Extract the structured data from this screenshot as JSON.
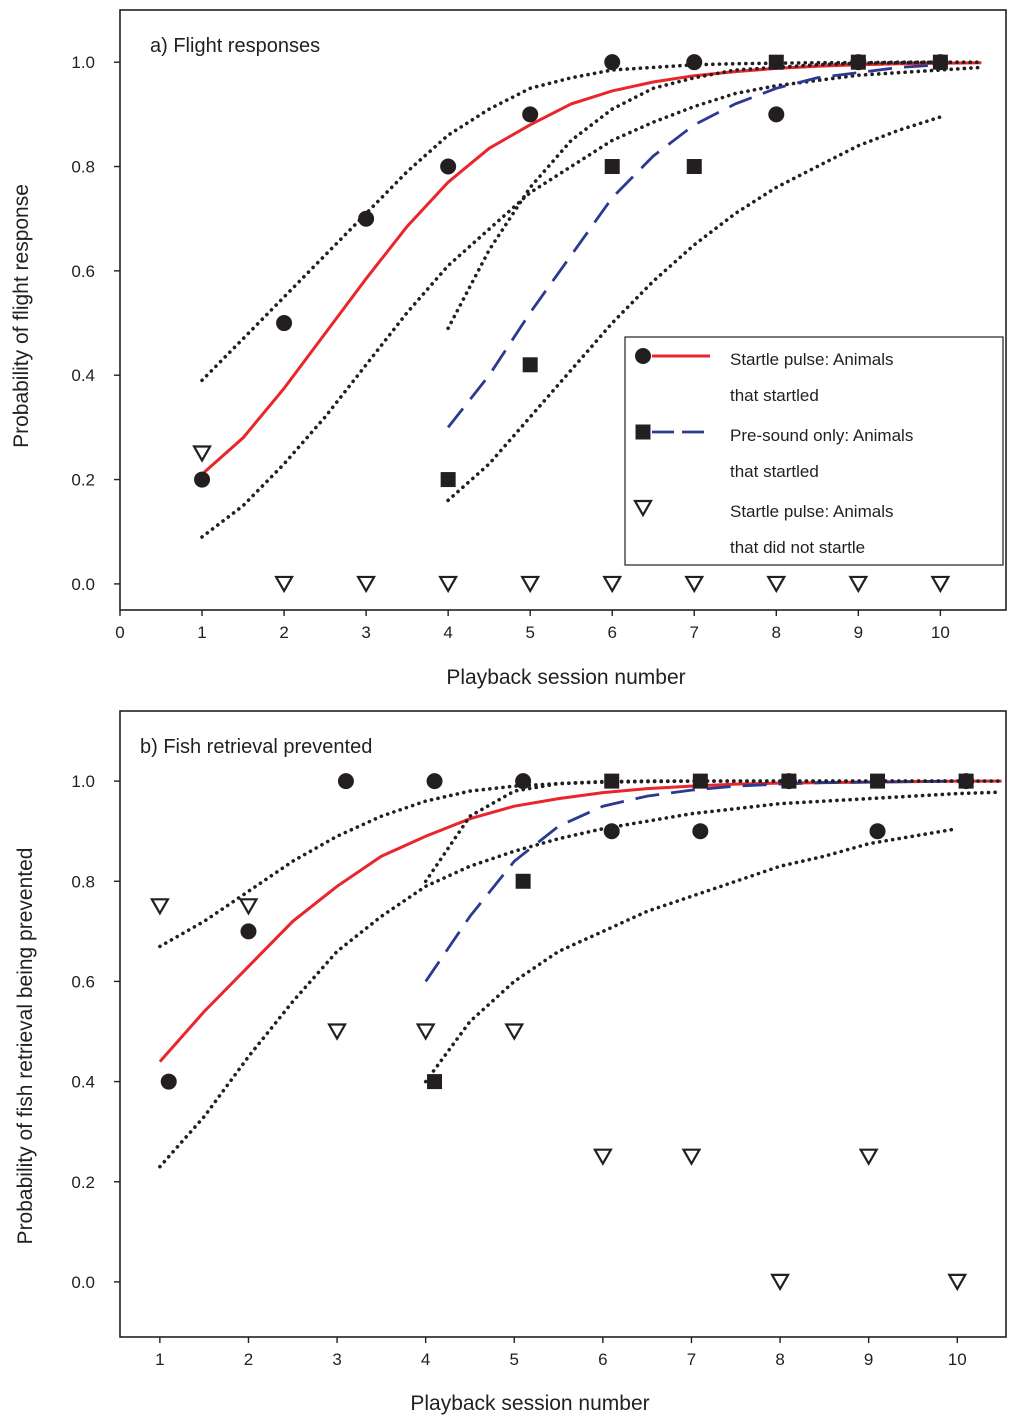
{
  "chart_data": [
    {
      "type": "scatter",
      "title": "a) Flight responses",
      "xlabel": "Playback session number",
      "ylabel": "Probability of flight response",
      "xlim": [
        0,
        10.8
      ],
      "ylim": [
        -0.05,
        1.1
      ],
      "xticks": [
        "0",
        "1",
        "2",
        "3",
        "4",
        "5",
        "6",
        "7",
        "8",
        "9",
        "10"
      ],
      "yticks": [
        "0.0",
        "0.2",
        "0.4",
        "0.6",
        "0.8",
        "1.0"
      ],
      "legend_position": "middle-right",
      "series": [
        {
          "name": "Startle pulse: Animals that startled",
          "kind": "points",
          "marker": "circle",
          "x": [
            1,
            2,
            3,
            4,
            5,
            6,
            7,
            8,
            9,
            10
          ],
          "y": [
            0.2,
            0.5,
            0.7,
            0.8,
            0.9,
            1.0,
            1.0,
            0.9,
            1.0,
            1.0
          ]
        },
        {
          "name": "Startle pulse: Animals that startled",
          "kind": "fit",
          "color": "#e8262b",
          "dash": "solid",
          "x": [
            1,
            1.5,
            2,
            2.5,
            3,
            3.5,
            4,
            4.5,
            5,
            5.5,
            6,
            6.5,
            7,
            7.5,
            8,
            8.5,
            9,
            9.5,
            10,
            10.5
          ],
          "y": [
            0.21,
            0.28,
            0.375,
            0.48,
            0.585,
            0.685,
            0.77,
            0.835,
            0.88,
            0.92,
            0.945,
            0.962,
            0.974,
            0.982,
            0.988,
            0.992,
            0.995,
            0.997,
            0.998,
            0.999
          ]
        },
        {
          "kind": "ci",
          "color": "#231f20",
          "dash": "dotted",
          "x": [
            1,
            1.5,
            2,
            2.5,
            3,
            3.5,
            4,
            4.5,
            5,
            5.5,
            6,
            6.5,
            7,
            7.5,
            8,
            8.5,
            9,
            9.5,
            10,
            10.5
          ],
          "y": [
            0.39,
            0.47,
            0.55,
            0.63,
            0.71,
            0.79,
            0.86,
            0.91,
            0.95,
            0.97,
            0.985,
            0.99,
            0.995,
            0.997,
            0.998,
            0.999,
            0.999,
            1.0,
            1.0,
            1.0
          ]
        },
        {
          "kind": "ci",
          "color": "#231f20",
          "dash": "dotted",
          "x": [
            1,
            1.5,
            2,
            2.5,
            3,
            3.5,
            4,
            4.5,
            5,
            5.5,
            6,
            6.5,
            7,
            7.5,
            8,
            8.5,
            9,
            9.5,
            10,
            10.5
          ],
          "y": [
            0.09,
            0.15,
            0.23,
            0.32,
            0.42,
            0.52,
            0.61,
            0.68,
            0.75,
            0.8,
            0.85,
            0.885,
            0.915,
            0.94,
            0.955,
            0.965,
            0.975,
            0.98,
            0.985,
            0.99
          ]
        },
        {
          "name": "Pre-sound only: Animals that startled",
          "kind": "points",
          "marker": "square",
          "x": [
            4,
            5,
            6,
            7,
            8,
            9,
            10
          ],
          "y": [
            0.2,
            0.42,
            0.8,
            0.8,
            1.0,
            1.0,
            1.0
          ]
        },
        {
          "name": "Pre-sound only: Animals that startled",
          "kind": "fit",
          "color": "#2b3990",
          "dash": "dashed",
          "x": [
            4,
            4.5,
            5,
            5.5,
            6,
            6.5,
            7,
            7.5,
            8,
            8.5,
            9,
            9.5,
            10
          ],
          "y": [
            0.3,
            0.4,
            0.52,
            0.63,
            0.74,
            0.82,
            0.88,
            0.92,
            0.95,
            0.97,
            0.98,
            0.99,
            0.995
          ]
        },
        {
          "kind": "ci",
          "color": "#231f20",
          "dash": "dotted",
          "x": [
            4,
            4.5,
            5,
            5.5,
            6,
            6.5,
            7,
            7.5,
            8,
            8.5,
            9,
            9.5,
            10
          ],
          "y": [
            0.49,
            0.64,
            0.76,
            0.85,
            0.91,
            0.95,
            0.97,
            0.985,
            0.99,
            0.995,
            0.998,
            0.999,
            1.0
          ]
        },
        {
          "kind": "ci",
          "color": "#231f20",
          "dash": "dotted",
          "x": [
            4,
            4.5,
            5,
            5.5,
            6,
            6.5,
            7,
            7.5,
            8,
            8.5,
            9,
            9.5,
            10
          ],
          "y": [
            0.16,
            0.23,
            0.32,
            0.41,
            0.5,
            0.58,
            0.65,
            0.71,
            0.76,
            0.8,
            0.84,
            0.87,
            0.895
          ]
        },
        {
          "name": "Startle pulse: Animals that did not startle",
          "kind": "points",
          "marker": "triangle-down",
          "x": [
            1,
            2,
            3,
            4,
            5,
            6,
            7,
            8,
            9,
            10
          ],
          "y": [
            0.25,
            0.0,
            0.0,
            0.0,
            0.0,
            0.0,
            0.0,
            0.0,
            0.0,
            0.0
          ]
        }
      ],
      "legend": [
        {
          "marker": "circle",
          "color": "#e8262b",
          "dash": "solid",
          "lines": [
            "Startle pulse: Animals",
            "that startled"
          ]
        },
        {
          "marker": "square",
          "color": "#2b3990",
          "dash": "dashed",
          "lines": [
            "Pre-sound only: Animals",
            "that startled"
          ]
        },
        {
          "marker": "triangle-down",
          "lines": [
            "Startle pulse: Animals",
            "that did not startle"
          ]
        }
      ]
    },
    {
      "type": "scatter",
      "title": "b) Fish retrieval prevented",
      "xlabel": "Playback session number",
      "ylabel": "Probability of fish retrieval being prevented",
      "xlim": [
        0.55,
        10.55
      ],
      "ylim": [
        -0.11,
        1.14
      ],
      "xticks": [
        "1",
        "2",
        "3",
        "4",
        "5",
        "6",
        "7",
        "8",
        "9",
        "10"
      ],
      "yticks": [
        "0.0",
        "0.2",
        "0.4",
        "0.6",
        "0.8",
        "1.0"
      ],
      "series": [
        {
          "name": "Startle pulse: Animals that startled",
          "kind": "points",
          "marker": "circle",
          "x": [
            1.1,
            2,
            3.1,
            4.1,
            5.1,
            6.1,
            7.1,
            8.1,
            9.1,
            10.1
          ],
          "y": [
            0.4,
            0.7,
            1.0,
            1.0,
            1.0,
            0.9,
            0.9,
            1.0,
            0.9,
            1.0
          ]
        },
        {
          "name": "Startle pulse: Animals that startled",
          "kind": "fit",
          "color": "#e8262b",
          "dash": "solid",
          "x": [
            1,
            1.5,
            2,
            2.5,
            3,
            3.5,
            4,
            4.5,
            5,
            5.5,
            6,
            6.5,
            7,
            7.5,
            8,
            8.5,
            9,
            9.5,
            10,
            10.5
          ],
          "y": [
            0.44,
            0.54,
            0.63,
            0.72,
            0.79,
            0.85,
            0.89,
            0.925,
            0.95,
            0.965,
            0.977,
            0.985,
            0.99,
            0.994,
            0.996,
            0.997,
            0.998,
            0.999,
            1.0,
            1.0
          ]
        },
        {
          "kind": "ci",
          "color": "#231f20",
          "dash": "dotted",
          "x": [
            1,
            1.5,
            2,
            2.5,
            3,
            3.5,
            4,
            4.5,
            5,
            5.5,
            6,
            6.5,
            7,
            7.5,
            8,
            8.5,
            9,
            9.5,
            10,
            10.5
          ],
          "y": [
            0.67,
            0.72,
            0.78,
            0.84,
            0.89,
            0.93,
            0.96,
            0.98,
            0.99,
            0.995,
            0.998,
            0.999,
            1.0,
            1.0,
            1.0,
            1.0,
            1.0,
            1.0,
            1.0,
            1.0
          ]
        },
        {
          "kind": "ci",
          "color": "#231f20",
          "dash": "dotted",
          "x": [
            1,
            1.5,
            2,
            2.5,
            3,
            3.5,
            4,
            4.5,
            5,
            5.5,
            6,
            6.5,
            7,
            7.5,
            8,
            8.5,
            9,
            9.5,
            10,
            10.5
          ],
          "y": [
            0.23,
            0.33,
            0.45,
            0.56,
            0.66,
            0.73,
            0.79,
            0.83,
            0.86,
            0.885,
            0.905,
            0.92,
            0.935,
            0.945,
            0.955,
            0.96,
            0.965,
            0.97,
            0.975,
            0.978
          ]
        },
        {
          "name": "Pre-sound only: Animals that startled",
          "kind": "points",
          "marker": "square",
          "x": [
            4.1,
            5.1,
            6.1,
            7.1,
            8.1,
            9.1,
            10.1
          ],
          "y": [
            0.4,
            0.8,
            1.0,
            1.0,
            1.0,
            1.0,
            1.0
          ]
        },
        {
          "name": "Pre-sound only: Animals that startled",
          "kind": "fit",
          "color": "#2b3990",
          "dash": "dashed",
          "x": [
            4,
            4.5,
            5,
            5.5,
            6,
            6.5,
            7,
            7.5,
            8,
            8.5,
            9,
            9.5,
            10
          ],
          "y": [
            0.6,
            0.73,
            0.84,
            0.91,
            0.95,
            0.97,
            0.982,
            0.99,
            0.994,
            0.997,
            0.998,
            0.999,
            1.0
          ]
        },
        {
          "kind": "ci",
          "color": "#231f20",
          "dash": "dotted",
          "x": [
            4,
            4.5,
            5,
            5.5,
            6,
            6.5,
            7,
            7.5,
            8,
            8.5,
            9,
            9.5,
            10
          ],
          "y": [
            0.8,
            0.93,
            0.98,
            0.995,
            0.999,
            1.0,
            1.0,
            1.0,
            1.0,
            1.0,
            1.0,
            1.0,
            1.0
          ]
        },
        {
          "kind": "ci",
          "color": "#231f20",
          "dash": "dotted",
          "x": [
            4,
            4.5,
            5,
            5.5,
            6,
            6.5,
            7,
            7.5,
            8,
            8.5,
            9,
            9.5,
            10
          ],
          "y": [
            0.4,
            0.52,
            0.6,
            0.66,
            0.7,
            0.74,
            0.77,
            0.8,
            0.83,
            0.85,
            0.875,
            0.89,
            0.905
          ]
        },
        {
          "name": "Startle pulse: Animals that did not startle",
          "kind": "points",
          "marker": "triangle-down",
          "x": [
            1,
            2,
            3,
            4,
            5,
            6,
            7,
            8,
            9,
            10
          ],
          "y": [
            0.75,
            0.75,
            0.5,
            0.5,
            0.5,
            0.25,
            0.25,
            0.0,
            0.25,
            0.0
          ]
        }
      ]
    }
  ]
}
